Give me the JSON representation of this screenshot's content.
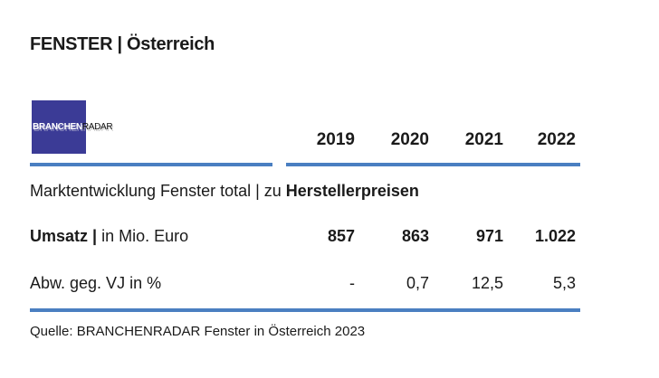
{
  "header": {
    "title": "FENSTER | Österreich"
  },
  "logo": {
    "part1": "BRANCHEN",
    "part2": "RADAR"
  },
  "table": {
    "columns": [
      "2019",
      "2020",
      "2021",
      "2022"
    ],
    "subtitle": {
      "text": "Marktentwicklung Fenster total | zu ",
      "bold": "Herstellerpreisen"
    },
    "rows": [
      {
        "label": "Umsatz |",
        "unit": " in Mio. Euro",
        "cells": [
          "857",
          "863",
          "971",
          "1.022"
        ]
      },
      {
        "label": "Abw. geg. VJ in %",
        "unit": null,
        "cells": [
          "-",
          "0,7",
          "12,5",
          "5,3"
        ]
      }
    ]
  },
  "footer": {
    "source": "Quelle: BRANCHENRADAR Fenster in Österreich 2023"
  }
}
